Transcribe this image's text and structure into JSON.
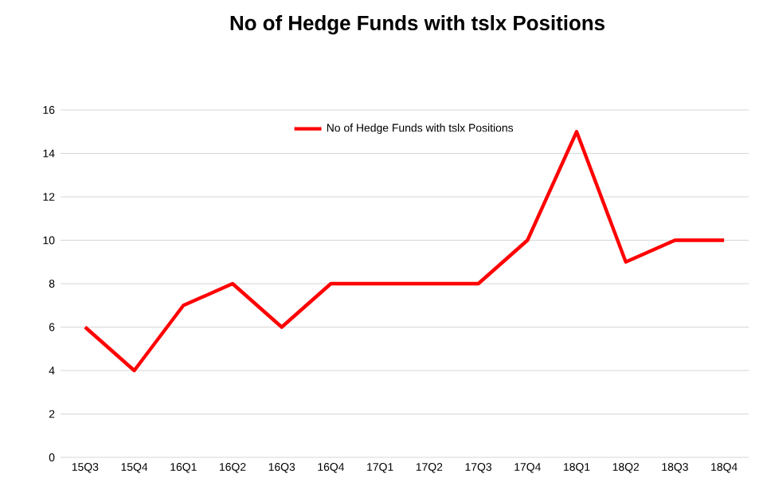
{
  "chart_data": {
    "type": "line",
    "title": "No of Hedge Funds with tslx Positions",
    "categories": [
      "15Q3",
      "15Q4",
      "16Q1",
      "16Q2",
      "16Q3",
      "16Q4",
      "17Q1",
      "17Q2",
      "17Q3",
      "17Q4",
      "18Q1",
      "18Q2",
      "18Q3",
      "18Q4"
    ],
    "series": [
      {
        "name": "No of Hedge Funds with tslx Positions",
        "color": "#ff0000",
        "values": [
          6,
          4,
          7,
          8,
          6,
          8,
          8,
          8,
          8,
          10,
          15,
          9,
          10,
          10
        ]
      }
    ],
    "ylim": [
      0,
      16
    ],
    "yticks": [
      0,
      2,
      4,
      6,
      8,
      10,
      12,
      14,
      16
    ],
    "grid": "y",
    "legend": "top",
    "marker": "none",
    "line_style": "solid"
  }
}
